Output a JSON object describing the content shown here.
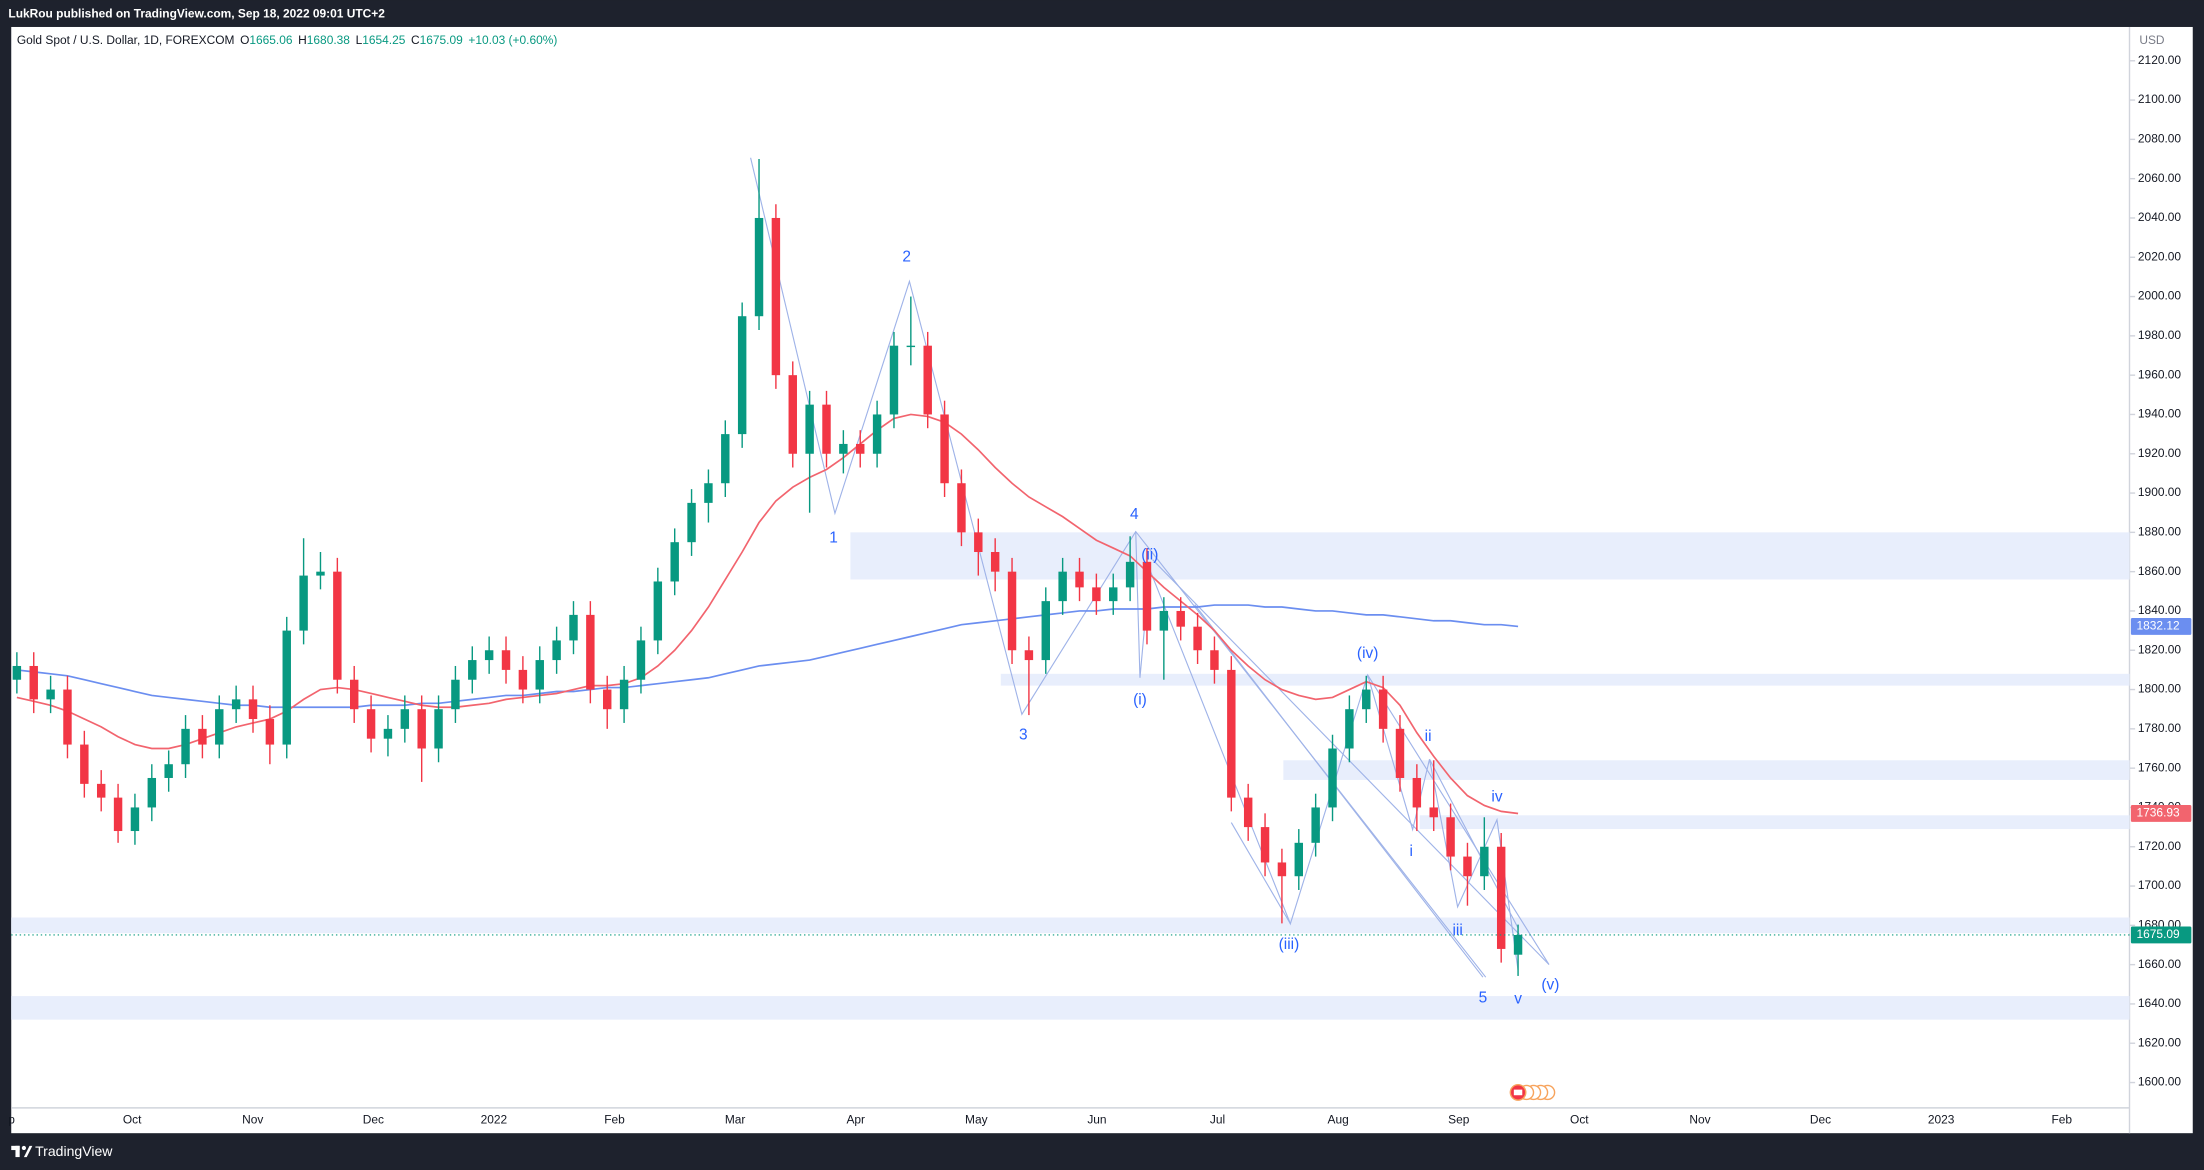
{
  "header": {
    "publisher": "LukRou published on TradingView.com, Sep 18, 2022 09:01 UTC+2"
  },
  "footer": {
    "brand": "TradingView"
  },
  "chart_data": {
    "type": "candlestick",
    "title": "Gold Spot / U.S. Dollar, 1D, FOREXCOM",
    "ohlc_labels": [
      "O",
      "H",
      "L",
      "C"
    ],
    "change": "+10.03 (+0.60%)",
    "currency": "USD",
    "up_color": "#089981",
    "down_color": "#f23645",
    "open": [
      1805,
      1812,
      1795,
      1800,
      1772,
      1752,
      1745,
      1728,
      1740,
      1755,
      1762,
      1780,
      1772,
      1790,
      1795,
      1785,
      1772,
      1830,
      1858,
      1860,
      1805,
      1790,
      1775,
      1780,
      1790,
      1770,
      1790,
      1805,
      1815,
      1820,
      1810,
      1800,
      1815,
      1825,
      1838,
      1800,
      1790,
      1805,
      1825,
      1855,
      1875,
      1895,
      1905,
      1930,
      1990,
      2040,
      1960,
      1920,
      1945,
      1920,
      1925,
      1920,
      1940,
      1975,
      1975,
      1940,
      1905,
      1880,
      1870,
      1860,
      1820,
      1815,
      1845,
      1860,
      1852,
      1845,
      1852,
      1865,
      1830,
      1840,
      1832,
      1820,
      1810,
      1745,
      1730,
      1712,
      1705,
      1722,
      1740,
      1770,
      1790,
      1800,
      1780,
      1755,
      1740,
      1735,
      1715,
      1705,
      1720,
      1665.06
    ],
    "high": [
      1819,
      1819,
      1807,
      1807,
      1779,
      1759,
      1752,
      1747,
      1762,
      1769,
      1787,
      1787,
      1797,
      1802,
      1802,
      1792,
      1837,
      1877,
      1870,
      1867,
      1812,
      1797,
      1787,
      1797,
      1797,
      1797,
      1812,
      1822,
      1827,
      1827,
      1817,
      1822,
      1832,
      1845,
      1845,
      1807,
      1812,
      1832,
      1862,
      1882,
      1902,
      1912,
      1937,
      1997,
      2070,
      2047,
      1967,
      1952,
      1952,
      1932,
      1932,
      1947,
      1982,
      2000,
      1982,
      1947,
      1912,
      1887,
      1877,
      1867,
      1827,
      1852,
      1867,
      1867,
      1859,
      1859,
      1878,
      1872,
      1847,
      1847,
      1839,
      1827,
      1817,
      1752,
      1737,
      1719,
      1729,
      1747,
      1777,
      1797,
      1807,
      1807,
      1787,
      1762,
      1764,
      1742,
      1722,
      1735,
      1727,
      1680.38
    ],
    "low": [
      1798,
      1788,
      1788,
      1765,
      1745,
      1738,
      1722,
      1721,
      1733,
      1748,
      1755,
      1765,
      1765,
      1783,
      1778,
      1762,
      1765,
      1823,
      1851,
      1798,
      1783,
      1768,
      1766,
      1773,
      1753,
      1763,
      1783,
      1798,
      1808,
      1803,
      1793,
      1793,
      1808,
      1818,
      1793,
      1780,
      1783,
      1798,
      1818,
      1848,
      1868,
      1885,
      1898,
      1923,
      1983,
      1953,
      1913,
      1890,
      1913,
      1910,
      1913,
      1913,
      1933,
      1965,
      1933,
      1898,
      1873,
      1858,
      1850,
      1813,
      1787,
      1808,
      1838,
      1845,
      1838,
      1838,
      1845,
      1823,
      1805,
      1825,
      1813,
      1803,
      1738,
      1723,
      1705,
      1681,
      1698,
      1715,
      1733,
      1763,
      1783,
      1773,
      1748,
      1728,
      1728,
      1708,
      1690,
      1698,
      1661,
      1654.25
    ],
    "close": [
      1812,
      1795,
      1800,
      1772,
      1752,
      1745,
      1728,
      1740,
      1755,
      1762,
      1780,
      1772,
      1790,
      1795,
      1785,
      1772,
      1830,
      1858,
      1860,
      1805,
      1790,
      1775,
      1780,
      1790,
      1770,
      1790,
      1805,
      1815,
      1820,
      1810,
      1800,
      1815,
      1825,
      1838,
      1800,
      1790,
      1805,
      1825,
      1855,
      1875,
      1895,
      1905,
      1930,
      1990,
      2040,
      1960,
      1920,
      1945,
      1920,
      1925,
      1920,
      1940,
      1975,
      1975,
      1940,
      1905,
      1880,
      1870,
      1860,
      1820,
      1815,
      1845,
      1860,
      1852,
      1845,
      1852,
      1865,
      1830,
      1840,
      1832,
      1820,
      1810,
      1745,
      1730,
      1712,
      1705,
      1722,
      1740,
      1770,
      1790,
      1800,
      1780,
      1755,
      1740,
      1735,
      1715,
      1705,
      1720,
      1668,
      1675.09
    ],
    "moving_averages": [
      {
        "color": "#6b8ef0",
        "values": [
          1810,
          1809,
          1808,
          1807,
          1805,
          1803,
          1801,
          1799,
          1797,
          1796,
          1795,
          1794,
          1793,
          1792,
          1792,
          1791,
          1791,
          1791,
          1791,
          1791,
          1791,
          1792,
          1792,
          1792,
          1793,
          1793,
          1794,
          1795,
          1796,
          1797,
          1797,
          1798,
          1799,
          1799,
          1800,
          1801,
          1801,
          1802,
          1803,
          1804,
          1805,
          1806,
          1808,
          1810,
          1812,
          1813,
          1814,
          1815,
          1817,
          1819,
          1821,
          1823,
          1825,
          1827,
          1829,
          1831,
          1833,
          1834,
          1835,
          1836,
          1837,
          1838,
          1839,
          1840,
          1840,
          1841,
          1841,
          1841,
          1842,
          1842,
          1842,
          1843,
          1843,
          1843,
          1842,
          1842,
          1841,
          1840,
          1840,
          1839,
          1838,
          1838,
          1837,
          1836,
          1835,
          1835,
          1834,
          1833,
          1833,
          1832.12
        ]
      },
      {
        "color": "#f2646e",
        "values": [
          1796,
          1794,
          1792,
          1789,
          1785,
          1781,
          1776,
          1772,
          1770,
          1770,
          1772,
          1775,
          1778,
          1781,
          1783,
          1785,
          1789,
          1795,
          1800,
          1801,
          1800,
          1798,
          1796,
          1794,
          1792,
          1791,
          1791,
          1792,
          1793,
          1795,
          1796,
          1797,
          1798,
          1800,
          1802,
          1802,
          1803,
          1806,
          1812,
          1820,
          1830,
          1842,
          1856,
          1870,
          1885,
          1896,
          1903,
          1908,
          1912,
          1918,
          1925,
          1932,
          1938,
          1940,
          1939,
          1936,
          1930,
          1922,
          1913,
          1905,
          1898,
          1893,
          1888,
          1882,
          1876,
          1872,
          1868,
          1860,
          1852,
          1845,
          1838,
          1830,
          1820,
          1812,
          1805,
          1800,
          1797,
          1795,
          1796,
          1800,
          1804,
          1801,
          1792,
          1778,
          1766,
          1755,
          1746,
          1741,
          1738,
          1736.93
        ]
      }
    ],
    "ylim": [
      1587.1,
      2137.2
    ],
    "yticks": [
      {
        "value": 1600,
        "label": "1600.00"
      },
      {
        "value": 1620,
        "label": "1620.00"
      },
      {
        "value": 1640,
        "label": "1640.00"
      },
      {
        "value": 1660,
        "label": "1660.00"
      },
      {
        "value": 1680,
        "label": "1680.00"
      },
      {
        "value": 1700,
        "label": "1700.00"
      },
      {
        "value": 1720,
        "label": "1720.00"
      },
      {
        "value": 1740,
        "label": "1740.00"
      },
      {
        "value": 1760,
        "label": "1760.00"
      },
      {
        "value": 1780,
        "label": "1780.00"
      },
      {
        "value": 1800,
        "label": "1800.00"
      },
      {
        "value": 1820,
        "label": "1820.00"
      },
      {
        "value": 1840,
        "label": "1840.00"
      },
      {
        "value": 1860,
        "label": "1860.00"
      },
      {
        "value": 1880,
        "label": "1880.00"
      },
      {
        "value": 1900,
        "label": "1900.00"
      },
      {
        "value": 1920,
        "label": "1920.00"
      },
      {
        "value": 1940,
        "label": "1940.00"
      },
      {
        "value": 1960,
        "label": "1960.00"
      },
      {
        "value": 1980,
        "label": "1980.00"
      },
      {
        "value": 2000,
        "label": "2000.00"
      },
      {
        "value": 2020,
        "label": "2020.00"
      },
      {
        "value": 2040,
        "label": "2040.00"
      },
      {
        "value": 2060,
        "label": "2060.00"
      },
      {
        "value": 2080,
        "label": "2080.00"
      },
      {
        "value": 2100,
        "label": "2100.00"
      },
      {
        "value": 2120,
        "label": "2120.00"
      }
    ],
    "x_labels": [
      "p",
      "Oct",
      "Nov",
      "Dec",
      "2022",
      "Feb",
      "Mar",
      "Apr",
      "May",
      "Jun",
      "Jul",
      "Aug",
      "Sep",
      "Oct",
      "Nov",
      "Dec",
      "2023",
      "Feb"
    ],
    "zones": [
      {
        "low": 1856,
        "high": 1880
      },
      {
        "low": 1802,
        "high": 1808
      },
      {
        "low": 1754,
        "high": 1764
      },
      {
        "low": 1729,
        "high": 1736
      },
      {
        "low": 1676,
        "high": 1684
      },
      {
        "low": 1632,
        "high": 1644
      }
    ],
    "zone_color": "#e8eefc",
    "wave_labels": [
      "1",
      "2",
      "3",
      "4",
      "5",
      "(i)",
      "(ii)",
      "(iii)",
      "(iv)",
      "(v)",
      "i",
      "ii",
      "iii",
      "iv",
      "v"
    ],
    "current_price_line": true
  }
}
